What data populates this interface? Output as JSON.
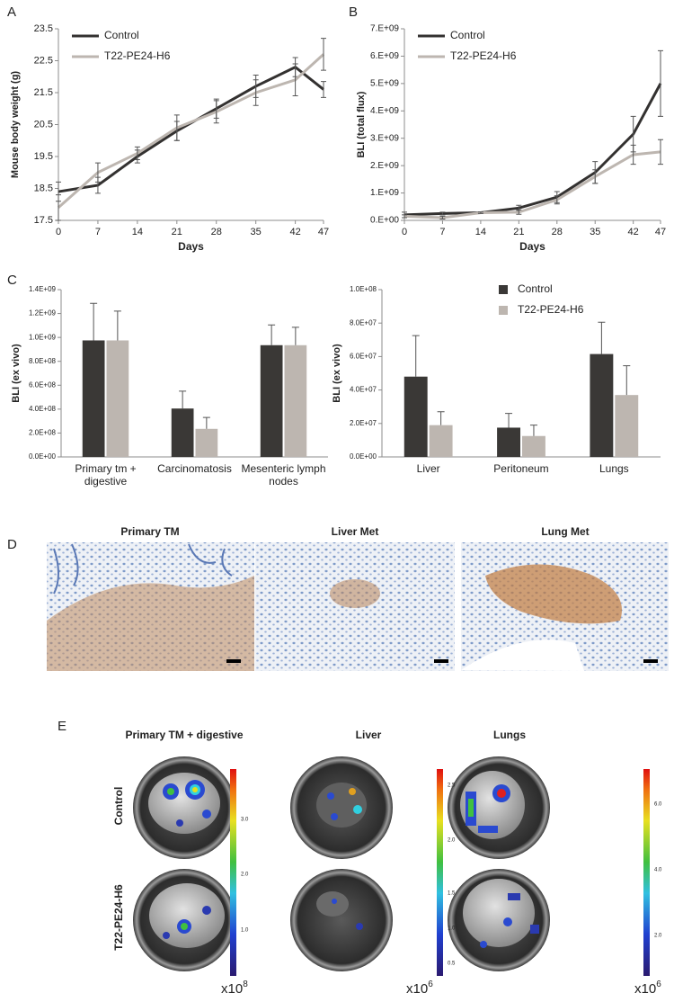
{
  "panel_labels": [
    "A",
    "B",
    "C",
    "D",
    "E"
  ],
  "chart_data": [
    {
      "type": "line",
      "xlabel": "Days",
      "ylabel": "Mouse body weight (g)",
      "x": [
        0,
        7,
        14,
        21,
        28,
        35,
        42,
        47
      ],
      "xlim": [
        0,
        47
      ],
      "xticks": [
        0,
        7,
        14,
        21,
        28,
        35,
        42,
        47
      ],
      "ylim": [
        17.5,
        23.5
      ],
      "yticks": [
        17.5,
        18.5,
        19.5,
        20.5,
        21.5,
        22.5,
        23.5
      ],
      "legend": "upper left",
      "series": [
        {
          "name": "Control",
          "color": "#333130",
          "values": [
            18.4,
            18.6,
            19.5,
            20.3,
            21.0,
            21.7,
            22.3,
            21.6
          ],
          "errors": [
            0.3,
            0.25,
            0.2,
            0.3,
            0.3,
            0.35,
            0.3,
            0.25
          ]
        },
        {
          "name": "T22-PE24-H6",
          "color": "#bdb6b0",
          "values": [
            17.9,
            19.0,
            19.6,
            20.4,
            20.9,
            21.5,
            21.9,
            22.7
          ],
          "errors": [
            0.4,
            0.3,
            0.2,
            0.4,
            0.35,
            0.4,
            0.5,
            0.5
          ]
        }
      ]
    },
    {
      "type": "line",
      "xlabel": "Days",
      "ylabel": "BLI (total flux)",
      "x": [
        0,
        7,
        14,
        21,
        28,
        35,
        42,
        47
      ],
      "xlim": [
        0,
        47
      ],
      "xticks": [
        0,
        7,
        14,
        21,
        28,
        35,
        42,
        47
      ],
      "ylim": [
        0,
        7000000000
      ],
      "yticks": [
        {
          "value": 0,
          "label": "0.E+00"
        },
        {
          "value": 1000000000,
          "label": "1.E+09"
        },
        {
          "value": 2000000000,
          "label": "2.E+09"
        },
        {
          "value": 3000000000,
          "label": "3.E+09"
        },
        {
          "value": 4000000000,
          "label": "4.E+09"
        },
        {
          "value": 5000000000,
          "label": "5.E+09"
        },
        {
          "value": 6000000000,
          "label": "6.E+09"
        },
        {
          "value": 7000000000,
          "label": "7.E+09"
        }
      ],
      "legend": "upper left",
      "series": [
        {
          "name": "Control",
          "color": "#333130",
          "values": [
            200000000,
            250000000,
            280000000,
            450000000,
            850000000,
            1750000000,
            3150000000,
            5000000000
          ],
          "errors": [
            100000000,
            50000000,
            30000000,
            100000000,
            200000000,
            400000000,
            650000000,
            1200000000
          ]
        },
        {
          "name": "T22-PE24-H6",
          "color": "#bdb6b0",
          "values": [
            150000000,
            100000000,
            280000000,
            300000000,
            750000000,
            1600000000,
            2400000000,
            2500000000
          ],
          "errors": [
            50000000,
            50000000,
            30000000,
            80000000,
            150000000,
            250000000,
            350000000,
            450000000
          ]
        }
      ]
    },
    {
      "type": "bar",
      "ylabel": "BLI (ex vivo)",
      "categories": [
        "Primary tm + digestive",
        "Carcinomatosis",
        "Mesenteric lymph nodes"
      ],
      "ylim": [
        0,
        1400000000
      ],
      "yticks": [
        {
          "value": 0,
          "label": "0.0E+00"
        },
        {
          "value": 200000000,
          "label": "2.0E+08"
        },
        {
          "value": 400000000,
          "label": "4.0E+08"
        },
        {
          "value": 600000000,
          "label": "6.0E+08"
        },
        {
          "value": 800000000,
          "label": "8.0E+08"
        },
        {
          "value": 1000000000,
          "label": "1.0E+09"
        },
        {
          "value": 1200000000,
          "label": "1.2E+09"
        },
        {
          "value": 1400000000,
          "label": "1.4E+09"
        }
      ],
      "series": [
        {
          "name": "Control",
          "color": "#3a3836",
          "values": [
            975000000,
            405000000,
            935000000
          ],
          "errors": [
            310000000,
            145000000,
            170000000
          ]
        },
        {
          "name": "T22-PE24-H6",
          "color": "#bdb6b0",
          "values": [
            975000000,
            235000000,
            935000000
          ],
          "errors": [
            245000000,
            95000000,
            150000000
          ]
        }
      ]
    },
    {
      "type": "bar",
      "ylabel": "BLI (ex vivo)",
      "categories": [
        "Liver",
        "Peritoneum",
        "Lungs"
      ],
      "ylim": [
        0,
        100000000
      ],
      "yticks": [
        {
          "value": 0,
          "label": "0.0E+00"
        },
        {
          "value": 20000000,
          "label": "2.0E+07"
        },
        {
          "value": 40000000,
          "label": "4.0E+07"
        },
        {
          "value": 60000000,
          "label": "6.0E+07"
        },
        {
          "value": 80000000,
          "label": "8.0E+07"
        },
        {
          "value": 100000000,
          "label": "1.0E+08"
        }
      ],
      "legend": "upper center",
      "series": [
        {
          "name": "Control",
          "color": "#3a3836",
          "values": [
            48000000,
            17500000,
            61500000
          ],
          "errors": [
            24500000,
            8500000,
            19000000
          ]
        },
        {
          "name": "T22-PE24-H6",
          "color": "#bdb6b0",
          "values": [
            19000000,
            12500000,
            37000000
          ],
          "errors": [
            8000000,
            6500000,
            17500000
          ]
        }
      ]
    }
  ],
  "histology": {
    "titles": [
      "Primary TM",
      "Liver Met",
      "Lung Met"
    ]
  },
  "imaging": {
    "columns": [
      "Primary TM + digestive",
      "Liver",
      "Lungs"
    ],
    "rows": [
      "Control",
      "T22-PE24-H6"
    ],
    "scales": [
      {
        "ticks": [
          "1.0",
          "2.0",
          "3.0"
        ],
        "multiplier": "x10",
        "exponent": "8"
      },
      {
        "ticks": [
          "0.5",
          "1.0",
          "1.5",
          "2.0",
          "2.5"
        ],
        "multiplier": "x10",
        "exponent": "6"
      },
      {
        "ticks": [
          "2.0",
          "4.0",
          "6.0"
        ],
        "multiplier": "x10",
        "exponent": "6"
      }
    ]
  }
}
